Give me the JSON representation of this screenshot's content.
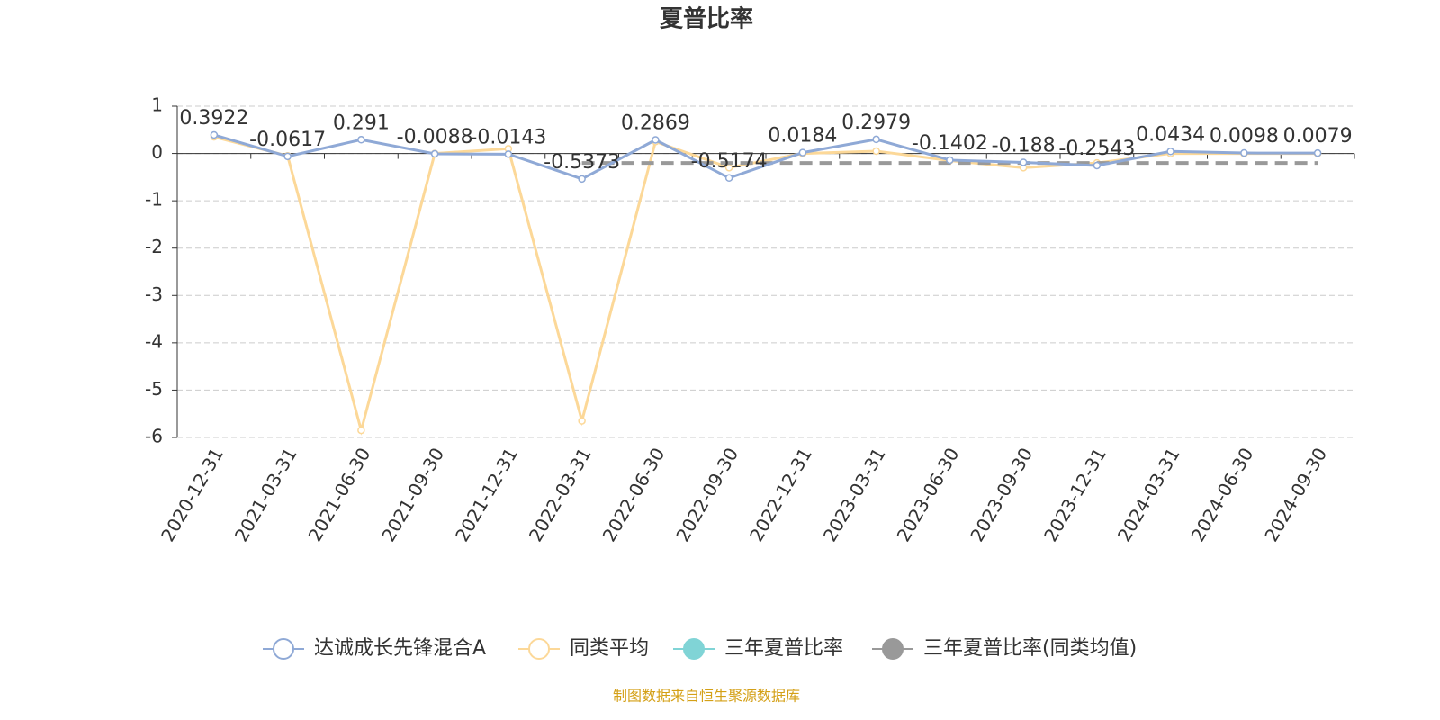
{
  "chart_data": {
    "type": "line",
    "title": "夏普比率",
    "categories": [
      "2020-12-31",
      "2021-03-31",
      "2021-06-30",
      "2021-09-30",
      "2021-12-31",
      "2022-03-31",
      "2022-06-30",
      "2022-09-30",
      "2022-12-31",
      "2023-03-31",
      "2023-06-30",
      "2023-09-30",
      "2023-12-31",
      "2024-03-31",
      "2024-06-30",
      "2024-09-30"
    ],
    "series": [
      {
        "name": "达诚成长先锋混合A",
        "color": "#8fa9d6",
        "values": [
          0.3922,
          -0.0617,
          0.291,
          -0.0088,
          -0.0143,
          -0.5373,
          0.2869,
          -0.5174,
          0.0184,
          0.2979,
          -0.1402,
          -0.188,
          -0.2543,
          0.0434,
          0.0098,
          0.0079
        ]
      },
      {
        "name": "同类平均",
        "color": "#fcd898",
        "values": [
          0.35,
          -0.05,
          -5.85,
          0.0,
          0.1,
          -5.65,
          0.25,
          -0.3,
          0.0,
          0.05,
          -0.15,
          -0.3,
          -0.2,
          0.0,
          0.0,
          0.0
        ]
      },
      {
        "name": "三年夏普比率",
        "color": "#80d4d6",
        "values": [
          null,
          null,
          null,
          null,
          null,
          null,
          null,
          null,
          null,
          null,
          null,
          null,
          null,
          null,
          null,
          null
        ]
      },
      {
        "name": "三年夏普比率(同类均值)",
        "color": "#999999",
        "values": [
          null,
          null,
          null,
          null,
          null,
          -0.2,
          -0.2,
          -0.2,
          -0.2,
          -0.2,
          -0.2,
          -0.2,
          -0.2,
          -0.2,
          -0.2,
          -0.2
        ]
      }
    ],
    "ylim": [
      -6,
      1
    ],
    "yticks": [
      -6,
      -5,
      -4,
      -3,
      -2,
      -1,
      0,
      1
    ],
    "grid": true,
    "source": "制图数据来自恒生聚源数据库"
  }
}
